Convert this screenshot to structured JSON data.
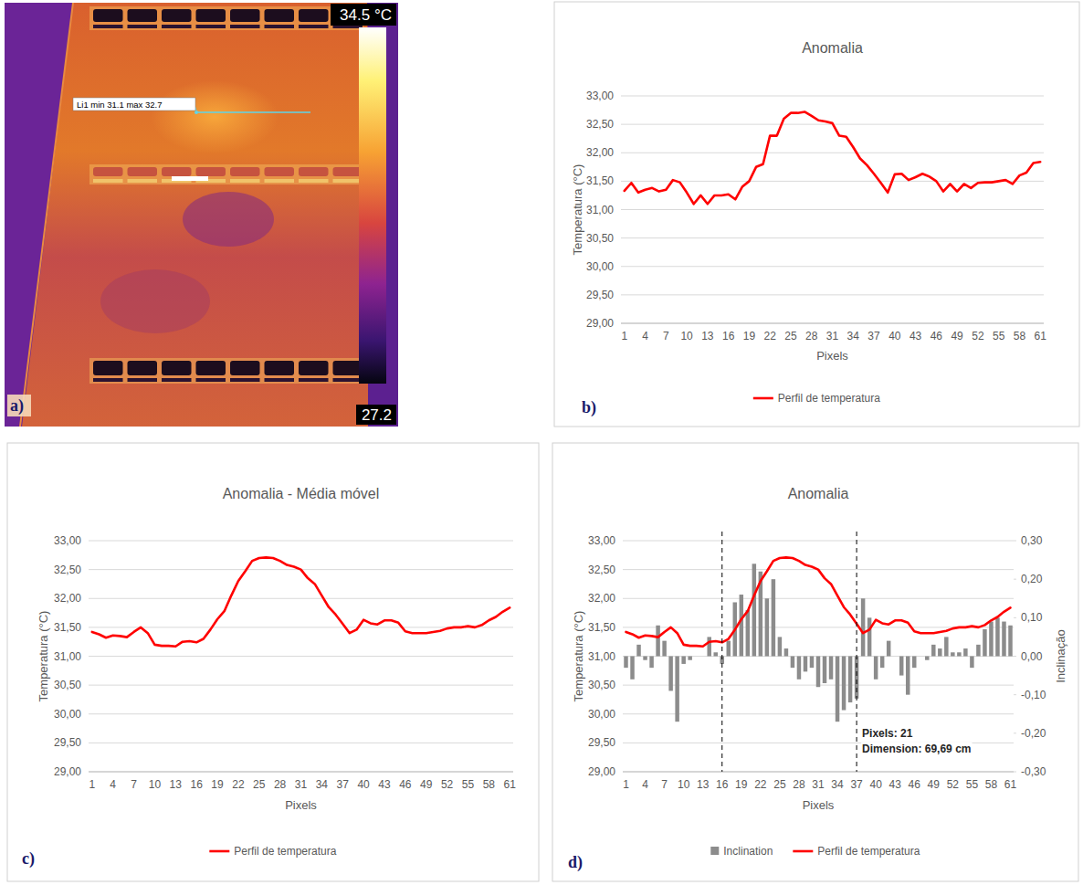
{
  "thermal_image": {
    "panel_label": "a)",
    "scale_max_label": "34.5 °C",
    "scale_min_label": "27.2",
    "line_label": "Li1 min 31.1 max 32.7"
  },
  "chart_data": [
    {
      "type": "line",
      "title": "Anomalia",
      "panel_label": "b)",
      "x_label": "Pixels",
      "y_label": "Temperatura (°C)",
      "categories": [
        1,
        null,
        null,
        4,
        null,
        null,
        7,
        null,
        null,
        10,
        null,
        null,
        13,
        null,
        null,
        16,
        null,
        null,
        19,
        null,
        null,
        22,
        null,
        null,
        25,
        null,
        null,
        28,
        null,
        null,
        31,
        null,
        null,
        34,
        null,
        null,
        37,
        null,
        null,
        40,
        null,
        null,
        43,
        null,
        null,
        46,
        null,
        null,
        49,
        null,
        null,
        52,
        null,
        null,
        55,
        null,
        null,
        58,
        null,
        null,
        61
      ],
      "series": [
        {
          "name": "Perfil de temperatura",
          "color": "#ff0000",
          "values": [
            31.33,
            31.47,
            31.3,
            31.35,
            31.38,
            31.32,
            31.35,
            31.52,
            31.48,
            31.3,
            31.1,
            31.25,
            31.1,
            31.25,
            31.25,
            31.27,
            31.18,
            31.4,
            31.5,
            31.75,
            31.8,
            32.3,
            32.3,
            32.6,
            32.7,
            32.7,
            32.72,
            32.65,
            32.57,
            32.55,
            32.52,
            32.3,
            32.28,
            32.1,
            31.9,
            31.78,
            31.63,
            31.47,
            31.3,
            31.62,
            31.63,
            31.52,
            31.57,
            31.63,
            31.58,
            31.5,
            31.32,
            31.45,
            31.32,
            31.45,
            31.38,
            31.47,
            31.48,
            31.48,
            31.5,
            31.52,
            31.45,
            31.6,
            31.65,
            31.82,
            31.84
          ]
        }
      ],
      "ylim": [
        29,
        33
      ],
      "yticks": [
        {
          "value": 29,
          "label": "29,00"
        },
        {
          "value": 29.5,
          "label": "29,50"
        },
        {
          "value": 30,
          "label": "30,00"
        },
        {
          "value": 30.5,
          "label": "30,50"
        },
        {
          "value": 31,
          "label": "31,00"
        },
        {
          "value": 31.5,
          "label": "31,50"
        },
        {
          "value": 32,
          "label": "32,00"
        },
        {
          "value": 32.5,
          "label": "32,50"
        },
        {
          "value": 33,
          "label": "33,00"
        }
      ],
      "grid": true,
      "legend": "bottom"
    },
    {
      "type": "line",
      "title": "Anomalia - Média móvel",
      "panel_label": "c)",
      "x_label": "Pixels",
      "y_label": "Temperatura (°C)",
      "categories": [
        1,
        null,
        null,
        4,
        null,
        null,
        7,
        null,
        null,
        10,
        null,
        null,
        13,
        null,
        null,
        16,
        null,
        null,
        19,
        null,
        null,
        22,
        null,
        null,
        25,
        null,
        null,
        28,
        null,
        null,
        31,
        null,
        null,
        34,
        null,
        null,
        37,
        null,
        null,
        40,
        null,
        null,
        43,
        null,
        null,
        46,
        null,
        null,
        49,
        null,
        null,
        52,
        null,
        null,
        55,
        null,
        null,
        58,
        null,
        null,
        61
      ],
      "series": [
        {
          "name": "Perfil de temperatura",
          "color": "#ff0000",
          "values": [
            31.42,
            31.38,
            31.32,
            31.36,
            31.35,
            31.33,
            31.42,
            31.5,
            31.4,
            31.2,
            31.18,
            31.18,
            31.17,
            31.25,
            31.26,
            31.24,
            31.3,
            31.46,
            31.64,
            31.78,
            32.05,
            32.3,
            32.47,
            32.65,
            32.7,
            32.71,
            32.7,
            32.65,
            32.58,
            32.55,
            32.5,
            32.35,
            32.25,
            32.05,
            31.85,
            31.72,
            31.56,
            31.4,
            31.46,
            31.63,
            31.57,
            31.55,
            31.62,
            31.62,
            31.58,
            31.43,
            31.4,
            31.4,
            31.4,
            31.42,
            31.44,
            31.48,
            31.5,
            31.5,
            31.52,
            31.5,
            31.54,
            31.62,
            31.68,
            31.77,
            31.84
          ]
        }
      ],
      "ylim": [
        29,
        33
      ],
      "yticks": [
        {
          "value": 29,
          "label": "29,00"
        },
        {
          "value": 29.5,
          "label": "29,50"
        },
        {
          "value": 30,
          "label": "30,00"
        },
        {
          "value": 30.5,
          "label": "30,50"
        },
        {
          "value": 31,
          "label": "31,00"
        },
        {
          "value": 31.5,
          "label": "31,50"
        },
        {
          "value": 32,
          "label": "32,00"
        },
        {
          "value": 32.5,
          "label": "32,50"
        },
        {
          "value": 33,
          "label": "33,00"
        }
      ],
      "grid": true,
      "legend": "bottom"
    },
    {
      "type": "line",
      "title": "Anomalia",
      "panel_label": "d)",
      "x_label": "Pixels",
      "y_label": "Temperatura (°C)",
      "y2_label": "Inclinação",
      "categories": [
        1,
        null,
        null,
        4,
        null,
        null,
        7,
        null,
        null,
        10,
        null,
        null,
        13,
        null,
        null,
        16,
        null,
        null,
        19,
        null,
        null,
        22,
        null,
        null,
        25,
        null,
        null,
        28,
        null,
        null,
        31,
        null,
        null,
        34,
        null,
        null,
        37,
        null,
        null,
        40,
        null,
        null,
        43,
        null,
        null,
        46,
        null,
        null,
        49,
        null,
        null,
        52,
        null,
        null,
        55,
        null,
        null,
        58,
        null,
        null,
        61
      ],
      "series": [
        {
          "name": "Inclination",
          "type": "bar",
          "axis": "y2",
          "color": "#8c8c8c",
          "values": [
            -0.03,
            -0.06,
            0.03,
            -0.01,
            -0.03,
            0.08,
            0.04,
            -0.09,
            -0.17,
            -0.02,
            -0.01,
            0.0,
            0.0,
            0.05,
            0.01,
            -0.02,
            0.04,
            0.14,
            0.16,
            0.12,
            0.24,
            0.22,
            0.15,
            0.2,
            0.05,
            0.02,
            -0.03,
            -0.06,
            -0.04,
            -0.03,
            -0.08,
            -0.07,
            -0.06,
            -0.17,
            -0.14,
            -0.12,
            -0.11,
            0.15,
            0.1,
            -0.06,
            -0.03,
            0.04,
            0.0,
            -0.05,
            -0.1,
            -0.03,
            0.0,
            -0.01,
            0.03,
            0.02,
            0.05,
            0.01,
            0.01,
            0.02,
            -0.03,
            0.03,
            0.07,
            0.09,
            0.1,
            0.09,
            0.08
          ]
        },
        {
          "name": "Perfil de temperatura",
          "type": "line",
          "color": "#ff0000",
          "values": [
            31.42,
            31.38,
            31.32,
            31.36,
            31.35,
            31.33,
            31.42,
            31.5,
            31.4,
            31.2,
            31.18,
            31.18,
            31.17,
            31.25,
            31.26,
            31.24,
            31.3,
            31.46,
            31.64,
            31.78,
            32.05,
            32.3,
            32.47,
            32.65,
            32.7,
            32.71,
            32.7,
            32.65,
            32.58,
            32.55,
            32.5,
            32.35,
            32.25,
            32.05,
            31.85,
            31.72,
            31.56,
            31.4,
            31.46,
            31.63,
            31.57,
            31.55,
            31.62,
            31.62,
            31.58,
            31.43,
            31.4,
            31.4,
            31.4,
            31.42,
            31.44,
            31.48,
            31.5,
            31.5,
            31.52,
            31.5,
            31.54,
            31.62,
            31.68,
            31.77,
            31.84
          ]
        }
      ],
      "ylim": [
        29,
        33
      ],
      "yticks": [
        {
          "value": 29,
          "label": "29,00"
        },
        {
          "value": 29.5,
          "label": "29,50"
        },
        {
          "value": 30,
          "label": "30,00"
        },
        {
          "value": 30.5,
          "label": "30,50"
        },
        {
          "value": 31,
          "label": "31,00"
        },
        {
          "value": 31.5,
          "label": "31,50"
        },
        {
          "value": 32,
          "label": "32,00"
        },
        {
          "value": 32.5,
          "label": "32,50"
        },
        {
          "value": 33,
          "label": "33,00"
        }
      ],
      "y2lim": [
        -0.3,
        0.3
      ],
      "y2ticks": [
        {
          "value": -0.3,
          "label": "-0,30"
        },
        {
          "value": -0.2,
          "label": "-0,20"
        },
        {
          "value": -0.1,
          "label": "-0,10"
        },
        {
          "value": 0,
          "label": "0,00"
        },
        {
          "value": 0.1,
          "label": "0,10"
        },
        {
          "value": 0.2,
          "label": "0,20"
        },
        {
          "value": 0.3,
          "label": "0,30"
        }
      ],
      "vlines": [
        16,
        37
      ],
      "annotations": [
        "Pixels: 21",
        "Dimension: 69,69 cm"
      ],
      "grid": true,
      "legend": "bottom"
    }
  ]
}
